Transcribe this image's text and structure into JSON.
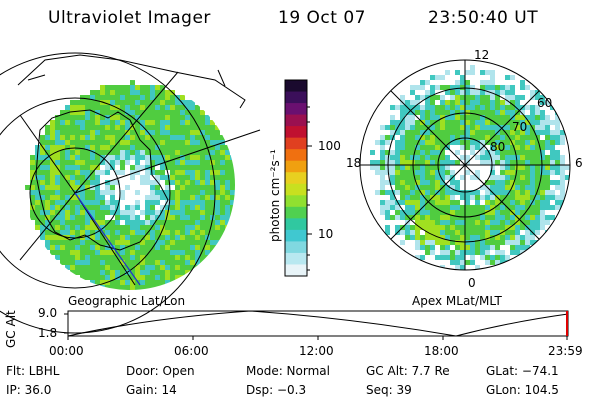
{
  "header": {
    "instrument": "Ultraviolet Imager",
    "date": "19 Oct 07",
    "time": "23:50:40 UT"
  },
  "left_panel": {
    "label": "Geographic Lat/Lon"
  },
  "right_panel": {
    "label": "Apex MLat/MLT",
    "mlt_labels": [
      "12",
      "18",
      "6",
      "0"
    ],
    "mlat_labels": [
      "60",
      "70",
      "80"
    ]
  },
  "colorbar": {
    "unit_label": "photon cm⁻²s⁻¹",
    "tick_labels": [
      "100",
      "10"
    ],
    "colors": [
      "#1a0a2e",
      "#3b0f5a",
      "#6a1070",
      "#9a1050",
      "#c01030",
      "#e04020",
      "#f07010",
      "#f0a010",
      "#e8d020",
      "#c8e020",
      "#90e030",
      "#50d050",
      "#30c8a0",
      "#40c8d0",
      "#80d8e0",
      "#b8e8f0",
      "#e8f4f8"
    ]
  },
  "altitude_plot": {
    "y_axis_label": "GC Alt",
    "y_ticks": [
      "9.0",
      "1.8"
    ],
    "x_ticks": [
      "00:00",
      "06:00",
      "12:00",
      "18:00",
      "23:59"
    ],
    "marker_color": "#e00000"
  },
  "status": {
    "row1": {
      "filter": "Flt: LBHL",
      "door": "Door: Open",
      "mode": "Mode: Normal",
      "gc_alt": "GC Alt: 7.7 Re",
      "glat": "GLat: −74.1"
    },
    "row2": {
      "ip": "IP: 36.0",
      "gain": "Gain: 14",
      "dsp": "Dsp:   −0.3",
      "seq": "Seq: 39",
      "glon": "GLon: 104.5"
    }
  },
  "aurora_colors": {
    "bright": "#a0e020",
    "green": "#50cc40",
    "cyan": "#40c8c0",
    "pale": "#b0e4ec"
  }
}
